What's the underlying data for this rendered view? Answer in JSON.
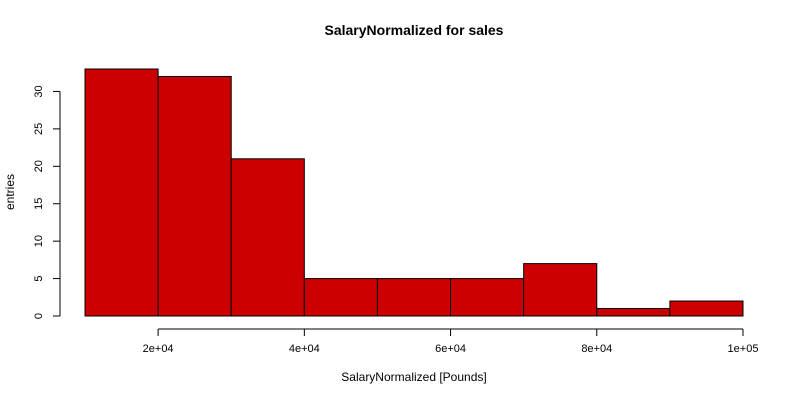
{
  "chart_data": {
    "type": "bar",
    "title": "SalaryNormalized for sales",
    "xlabel": "SalaryNormalized [Pounds]",
    "ylabel": "entries",
    "bins": [
      {
        "x0": 10000,
        "x1": 20000,
        "count": 33
      },
      {
        "x0": 20000,
        "x1": 30000,
        "count": 32
      },
      {
        "x0": 30000,
        "x1": 40000,
        "count": 21
      },
      {
        "x0": 40000,
        "x1": 50000,
        "count": 5
      },
      {
        "x0": 50000,
        "x1": 60000,
        "count": 5
      },
      {
        "x0": 60000,
        "x1": 70000,
        "count": 5
      },
      {
        "x0": 70000,
        "x1": 80000,
        "count": 7
      },
      {
        "x0": 80000,
        "x1": 90000,
        "count": 1
      },
      {
        "x0": 90000,
        "x1": 100000,
        "count": 2
      }
    ],
    "xlim": [
      10000,
      100000
    ],
    "ylim": [
      0,
      33
    ],
    "x_ticks": [
      {
        "value": 20000,
        "label": "2e+04"
      },
      {
        "value": 40000,
        "label": "4e+04"
      },
      {
        "value": 60000,
        "label": "6e+04"
      },
      {
        "value": 80000,
        "label": "8e+04"
      },
      {
        "value": 100000,
        "label": "1e+05"
      }
    ],
    "y_ticks": [
      {
        "value": 0,
        "label": "0"
      },
      {
        "value": 5,
        "label": "5"
      },
      {
        "value": 10,
        "label": "10"
      },
      {
        "value": 15,
        "label": "15"
      },
      {
        "value": 20,
        "label": "20"
      },
      {
        "value": 25,
        "label": "25"
      },
      {
        "value": 30,
        "label": "30"
      }
    ],
    "bar_color": "#cc0000",
    "bar_edge_color": "#000000",
    "grid": false
  }
}
